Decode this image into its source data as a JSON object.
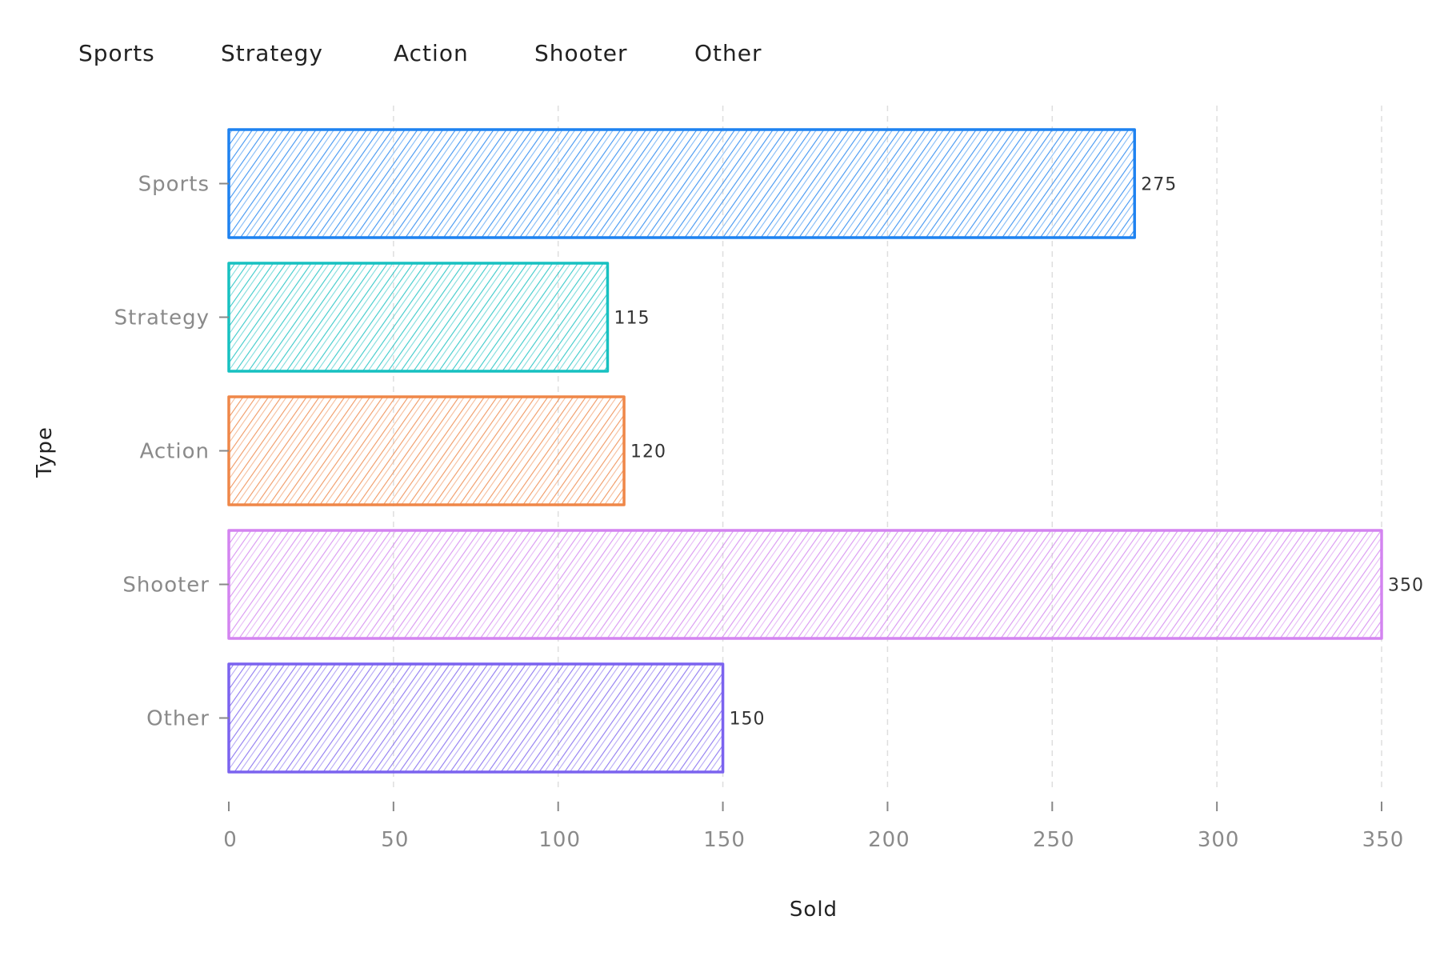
{
  "legend": {
    "items": [
      {
        "label": "Sports",
        "color": "#1e82f0"
      },
      {
        "label": "Strategy",
        "color": "#17c1c1"
      },
      {
        "label": "Action",
        "color": "#ef8748"
      },
      {
        "label": "Shooter",
        "color": "#d384f0"
      },
      {
        "label": "Other",
        "color": "#7b63ef"
      }
    ]
  },
  "chart_data": {
    "type": "bar",
    "orientation": "horizontal",
    "categories": [
      "Sports",
      "Strategy",
      "Action",
      "Shooter",
      "Other"
    ],
    "values": [
      275,
      115,
      120,
      350,
      150
    ],
    "colors": [
      "#1e82f0",
      "#17c1c1",
      "#ef8748",
      "#d384f0",
      "#7b63ef"
    ],
    "xlabel": "Sold",
    "ylabel": "Type",
    "xlim": [
      0,
      350
    ],
    "xticks": [
      0,
      50,
      100,
      150,
      200,
      250,
      300,
      350
    ],
    "grid": "vertical dashed",
    "legend_position": "top-left",
    "style": "hand-drawn hatched"
  }
}
